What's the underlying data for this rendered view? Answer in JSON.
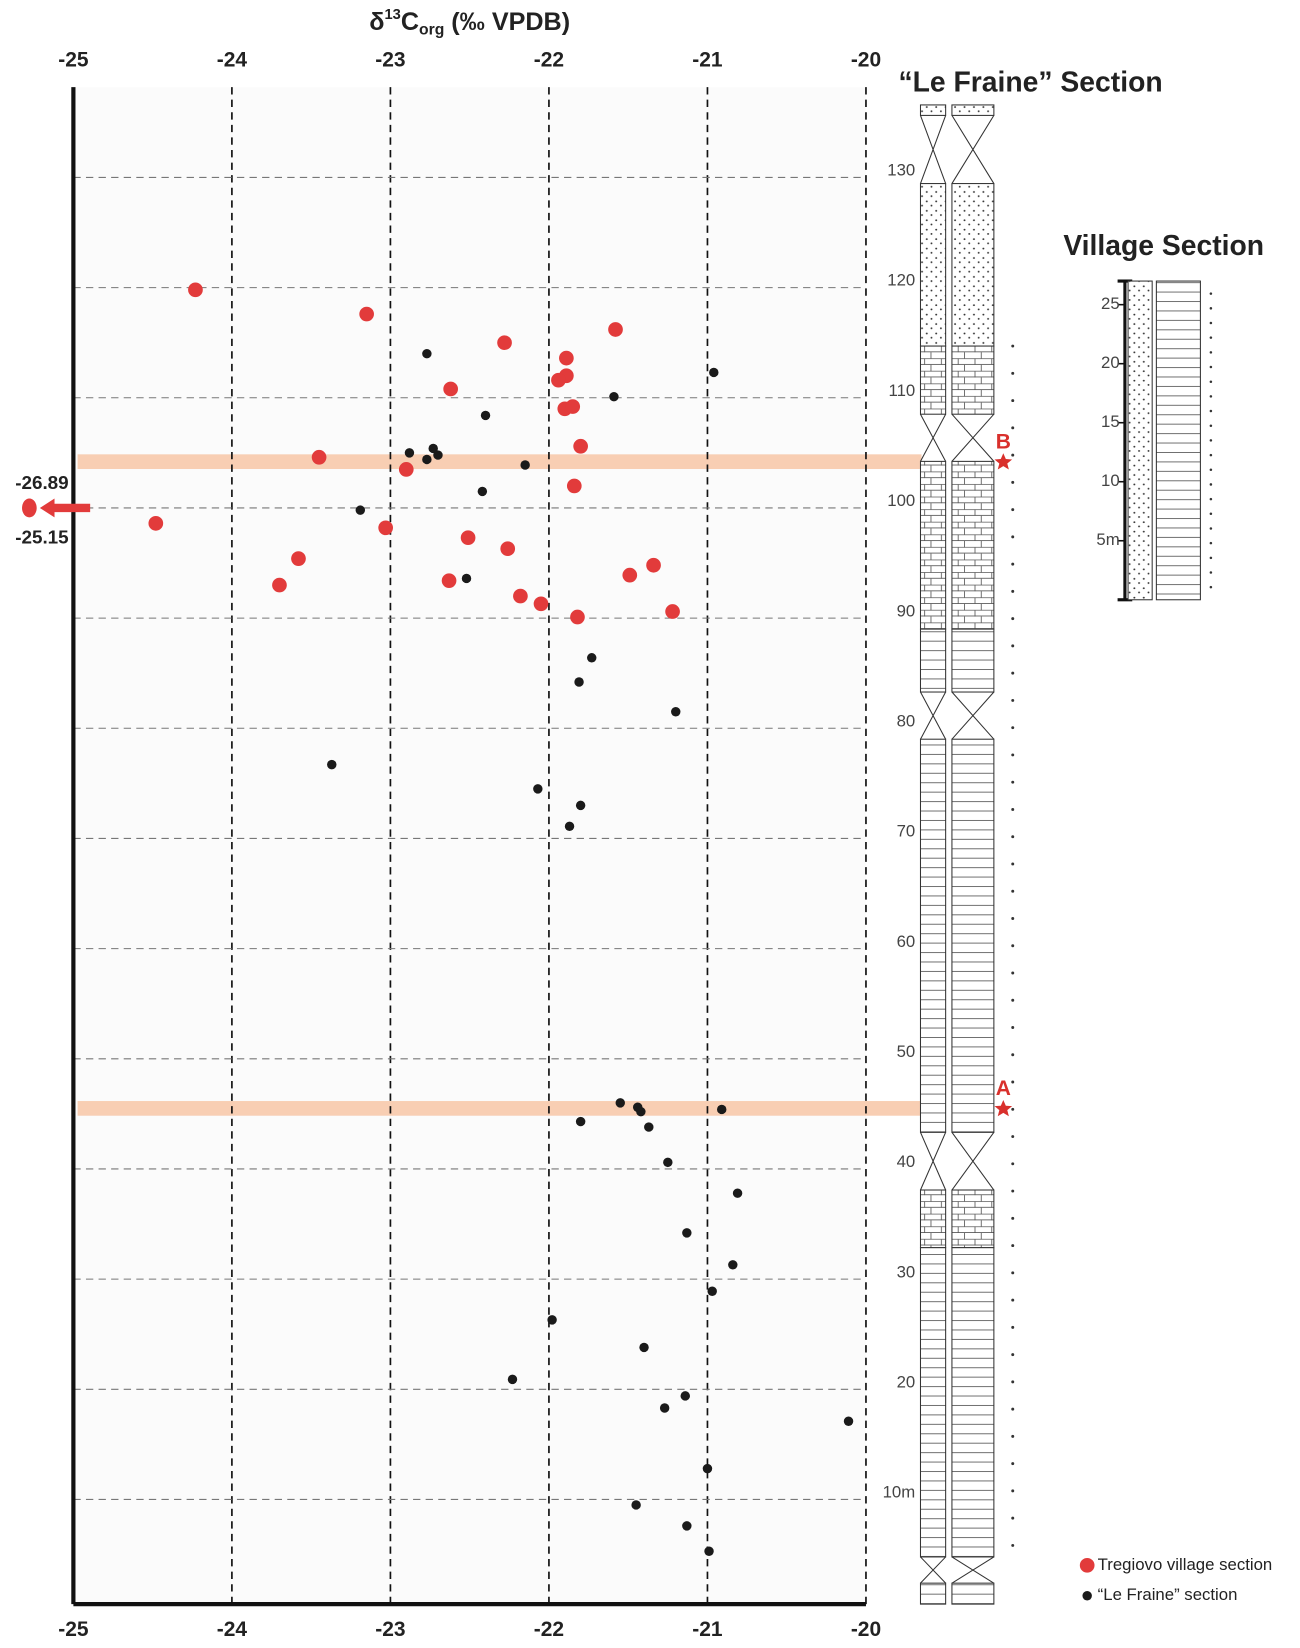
{
  "chart_data": [
    {
      "type": "scatter",
      "x_label_parts": [
        "δ",
        "13",
        "C",
        "org",
        " (‰ VPDB)"
      ],
      "column_title": "“Le Fraine” Section",
      "xlim": [
        -25,
        -20
      ],
      "xticks": [
        -25,
        -24,
        -23,
        -22,
        -21,
        -20
      ],
      "ylim": [
        0.5,
        138.2
      ],
      "yticks": [
        {
          "value": 10,
          "label": "10m"
        },
        20,
        30,
        40,
        50,
        60,
        70,
        80,
        90,
        100,
        110,
        120,
        130
      ],
      "grid": true,
      "bands": [
        {
          "label": "A",
          "y": 45.5
        },
        {
          "label": "B",
          "y": 104.2
        }
      ],
      "offscale": {
        "values": [
          -26.89,
          -25.15
        ],
        "height": 100
      },
      "series": [
        {
          "name": "Tregiovo village section",
          "color": "#e23b3b",
          "x": [
            -24.23,
            -23.15,
            -22.28,
            -21.58,
            -21.89,
            -21.89,
            -21.94,
            -22.62,
            -21.9,
            -21.85,
            -23.45,
            -21.8,
            -22.9,
            -21.84,
            -24.48,
            -23.03,
            -22.51,
            -23.58,
            -22.26,
            -21.34,
            -21.49,
            -23.7,
            -22.63,
            -22.18,
            -22.05,
            -21.82,
            -21.22
          ],
          "values": [
            119.8,
            117.6,
            115.0,
            116.2,
            113.6,
            112.0,
            111.6,
            110.8,
            109.0,
            109.2,
            104.6,
            105.6,
            103.5,
            102.0,
            98.6,
            98.2,
            97.3,
            95.4,
            96.3,
            94.8,
            93.9,
            93.0,
            93.4,
            92.0,
            91.3,
            90.1,
            90.6
          ]
        },
        {
          "name": "“Le Fraine” section",
          "color": "#1a1a1a",
          "x": [
            -22.77,
            -20.96,
            -21.59,
            -22.4,
            -22.88,
            -22.73,
            -22.7,
            -22.77,
            -22.15,
            -22.42,
            -23.19,
            -22.52,
            -21.73,
            -21.81,
            -21.2,
            -23.37,
            -22.07,
            -21.8,
            -21.87,
            -21.55,
            -21.44,
            -21.42,
            -20.91,
            -21.8,
            -21.37,
            -21.25,
            -20.81,
            -21.13,
            -20.84,
            -20.97,
            -21.98,
            -21.4,
            -22.23,
            -21.14,
            -21.27,
            -20.11,
            -21.0,
            -21.45,
            -21.13,
            -20.99
          ],
          "values": [
            114.0,
            112.3,
            110.1,
            108.4,
            105.0,
            105.4,
            104.8,
            104.4,
            103.9,
            101.5,
            99.8,
            93.6,
            86.4,
            84.2,
            81.5,
            76.7,
            74.5,
            73.0,
            71.1,
            46.0,
            45.6,
            45.2,
            45.4,
            44.3,
            43.8,
            40.6,
            37.8,
            34.2,
            31.3,
            28.9,
            26.3,
            23.8,
            20.9,
            19.4,
            18.3,
            17.1,
            12.8,
            9.5,
            7.6,
            5.3
          ]
        }
      ]
    },
    {
      "type": "column",
      "title": "Village Section",
      "ylim": [
        0,
        27
      ],
      "yticks": [
        {
          "value": 5,
          "label": "5m"
        },
        10,
        15,
        20,
        25
      ]
    }
  ]
}
